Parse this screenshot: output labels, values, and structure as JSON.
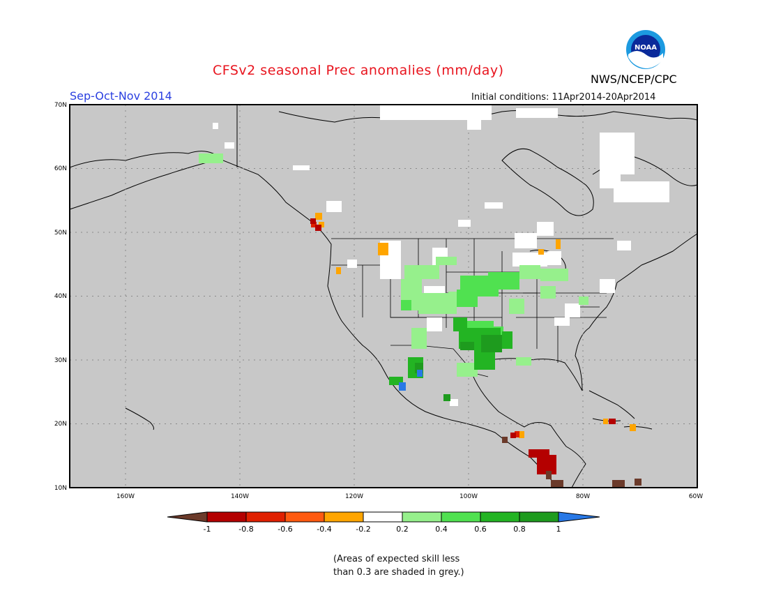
{
  "header": {
    "title": "CFSv2 seasonal Prec anomalies (mm/day)",
    "season": "Sep-Oct-Nov 2014",
    "initial_conditions": "Initial conditions: 11Apr2014-20Apr2014",
    "agency": "NWS/NCEP/CPC",
    "logo_text": "NOAA"
  },
  "map": {
    "region": "North America",
    "lat_labels": [
      "70N",
      "60N",
      "50N",
      "40N",
      "30N",
      "20N",
      "10N"
    ],
    "lon_labels": [
      "160W",
      "140W",
      "120W",
      "100W",
      "80W",
      "60W"
    ],
    "background_color": "#c8c8c8"
  },
  "colorbar": {
    "tick_labels": [
      "-1",
      "-0.8",
      "-0.6",
      "-0.4",
      "-0.2",
      "0.2",
      "0.4",
      "0.6",
      "0.8",
      "1"
    ],
    "colors": [
      "#6b3a2a",
      "#b40000",
      "#e02000",
      "#ff5a10",
      "#ffa500",
      "#ffffff",
      "#96f08c",
      "#50e150",
      "#23b423",
      "#1e9b1e",
      "#2878e6"
    ]
  },
  "footnote": {
    "line1": "(Areas of expected skill less",
    "line2": "than 0.3 are shaded in grey.)"
  }
}
